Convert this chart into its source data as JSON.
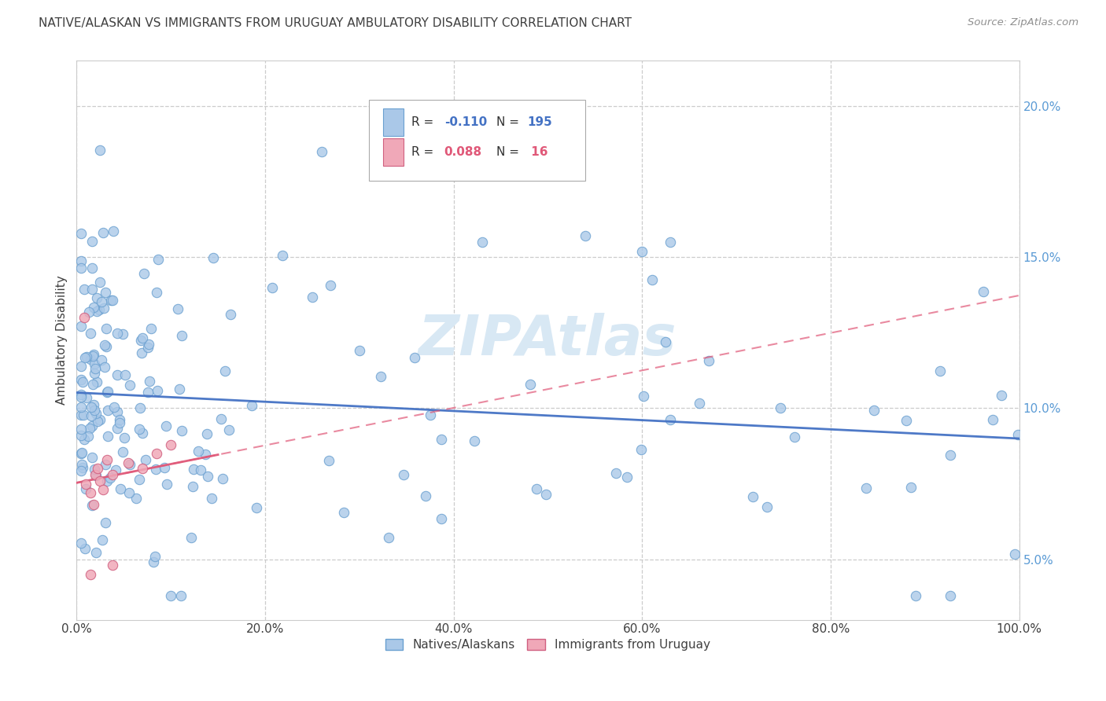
{
  "title": "NATIVE/ALASKAN VS IMMIGRANTS FROM URUGUAY AMBULATORY DISABILITY CORRELATION CHART",
  "source": "Source: ZipAtlas.com",
  "ylabel": "Ambulatory Disability",
  "xlim": [
    0,
    1.0
  ],
  "ylim": [
    0.03,
    0.215
  ],
  "yticks": [
    0.05,
    0.1,
    0.15,
    0.2
  ],
  "xticks": [
    0.0,
    0.2,
    0.4,
    0.6,
    0.8,
    1.0
  ],
  "color_blue": "#aac8e8",
  "color_blue_edge": "#6aa0d0",
  "color_pink": "#f0a8b8",
  "color_pink_edge": "#d06080",
  "color_trend_blue": "#4472c4",
  "color_trend_pink": "#e05878",
  "background_color": "#ffffff",
  "grid_color": "#cccccc",
  "watermark_color": "#d8e8f4",
  "title_color": "#404040",
  "source_color": "#909090",
  "ytick_color": "#5b9bd5",
  "xtick_color": "#404040"
}
